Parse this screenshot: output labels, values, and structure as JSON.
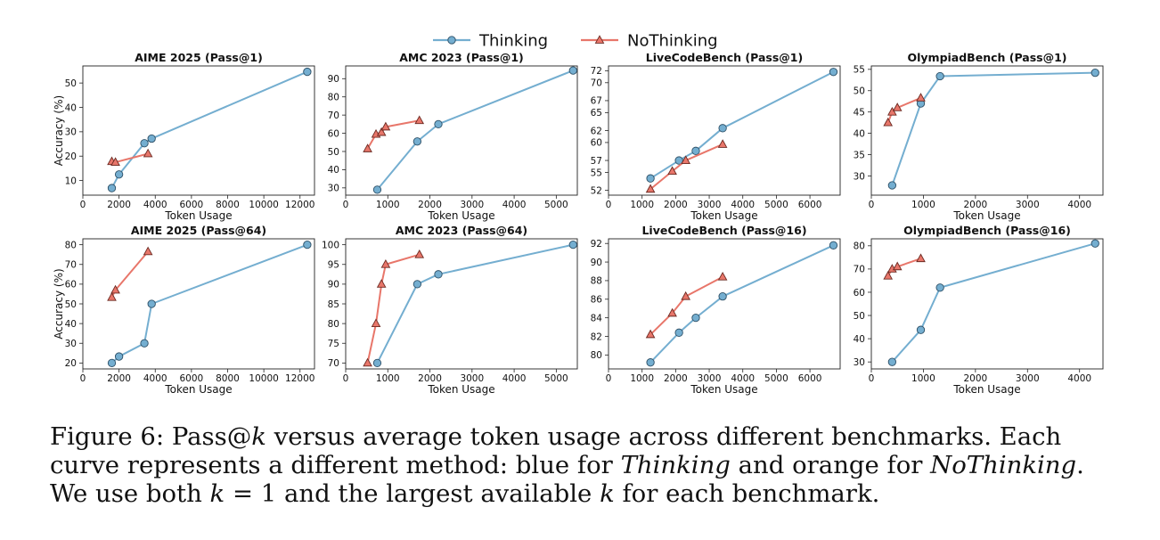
{
  "legend": {
    "placement": "top-center",
    "entries": [
      {
        "label": "Thinking",
        "color": "#74aed0",
        "marker": "circle"
      },
      {
        "label": "NoThinking",
        "color": "#e8766a",
        "marker": "triangle"
      }
    ]
  },
  "chart_data": [
    {
      "type": "line",
      "title": "AIME 2025 (Pass@1)",
      "xlabel": "Token Usage",
      "ylabel": "Accuracy (%)",
      "xlim": [
        0,
        12800
      ],
      "ylim": [
        4,
        57
      ],
      "xticks": [
        0,
        2000,
        4000,
        6000,
        8000,
        10000,
        12000
      ],
      "yticks": [
        10,
        20,
        30,
        40,
        50
      ],
      "series": [
        {
          "name": "Thinking",
          "x": [
            1600,
            2000,
            3400,
            3800,
            12400
          ],
          "y": [
            6.9,
            12.5,
            25.3,
            27.2,
            54.6
          ]
        },
        {
          "name": "NoThinking",
          "x": [
            1600,
            1800,
            3600
          ],
          "y": [
            17.8,
            17.5,
            21.0
          ]
        }
      ]
    },
    {
      "type": "line",
      "title": "AMC 2023 (Pass@1)",
      "xlabel": "Token Usage",
      "ylabel": "",
      "xlim": [
        0,
        5500
      ],
      "ylim": [
        26,
        97
      ],
      "xticks": [
        0,
        1000,
        2000,
        3000,
        4000,
        5000
      ],
      "yticks": [
        30,
        40,
        50,
        60,
        70,
        80,
        90
      ],
      "series": [
        {
          "name": "Thinking",
          "x": [
            750,
            1700,
            2200,
            5400
          ],
          "y": [
            29.0,
            55.5,
            65.0,
            94.5
          ]
        },
        {
          "name": "NoThinking",
          "x": [
            520,
            720,
            850,
            950,
            1750
          ],
          "y": [
            51.5,
            59.5,
            60.5,
            63.5,
            67.0
          ]
        }
      ]
    },
    {
      "type": "line",
      "title": "LiveCodeBench (Pass@1)",
      "xlabel": "Token Usage",
      "ylabel": "",
      "xlim": [
        0,
        6900
      ],
      "ylim": [
        51.2,
        72.8
      ],
      "xticks": [
        0,
        1000,
        2000,
        3000,
        4000,
        5000,
        6000
      ],
      "yticks": [
        52,
        55,
        57,
        60,
        62,
        65,
        67,
        70,
        72
      ],
      "series": [
        {
          "name": "Thinking",
          "x": [
            1250,
            2100,
            2600,
            3400,
            6700
          ],
          "y": [
            54.0,
            57.0,
            58.6,
            62.4,
            71.8
          ]
        },
        {
          "name": "NoThinking",
          "x": [
            1250,
            1900,
            2300,
            3400
          ],
          "y": [
            52.2,
            55.2,
            57.0,
            59.7
          ]
        }
      ]
    },
    {
      "type": "line",
      "title": "OlympiadBench (Pass@1)",
      "xlabel": "Token Usage",
      "ylabel": "",
      "xlim": [
        0,
        4450
      ],
      "ylim": [
        25.5,
        55.8
      ],
      "xticks": [
        0,
        1000,
        2000,
        3000,
        4000
      ],
      "yticks": [
        30,
        35,
        40,
        45,
        50,
        55
      ],
      "series": [
        {
          "name": "Thinking",
          "x": [
            400,
            950,
            1320,
            4300
          ],
          "y": [
            27.8,
            47.0,
            53.4,
            54.2
          ]
        },
        {
          "name": "NoThinking",
          "x": [
            320,
            400,
            500,
            950
          ],
          "y": [
            42.5,
            45.0,
            46.0,
            48.3
          ]
        }
      ]
    },
    {
      "type": "line",
      "title": "AIME 2025 (Pass@64)",
      "xlabel": "Token Usage",
      "ylabel": "Accuracy (%)",
      "xlim": [
        0,
        12800
      ],
      "ylim": [
        17,
        83
      ],
      "xticks": [
        0,
        2000,
        4000,
        6000,
        8000,
        10000,
        12000
      ],
      "yticks": [
        20,
        30,
        40,
        50,
        60,
        70,
        80
      ],
      "series": [
        {
          "name": "Thinking",
          "x": [
            1600,
            2000,
            3400,
            3800,
            12400
          ],
          "y": [
            20.0,
            23.3,
            30.0,
            50.0,
            80.0
          ]
        },
        {
          "name": "NoThinking",
          "x": [
            1600,
            1800,
            3600
          ],
          "y": [
            53.3,
            57.0,
            76.5
          ]
        }
      ]
    },
    {
      "type": "line",
      "title": "AMC 2023 (Pass@64)",
      "xlabel": "Token Usage",
      "ylabel": "",
      "xlim": [
        0,
        5500
      ],
      "ylim": [
        68.5,
        101.5
      ],
      "xticks": [
        0,
        1000,
        2000,
        3000,
        4000,
        5000
      ],
      "yticks": [
        70,
        75,
        80,
        85,
        90,
        95,
        100
      ],
      "series": [
        {
          "name": "Thinking",
          "x": [
            750,
            1700,
            2200,
            5400
          ],
          "y": [
            70.0,
            90.0,
            92.5,
            100.0
          ]
        },
        {
          "name": "NoThinking",
          "x": [
            520,
            720,
            850,
            950,
            1750
          ],
          "y": [
            70.0,
            80.0,
            90.0,
            95.0,
            97.5
          ]
        }
      ]
    },
    {
      "type": "line",
      "title": "LiveCodeBench (Pass@16)",
      "xlabel": "Token Usage",
      "ylabel": "",
      "xlim": [
        0,
        6900
      ],
      "ylim": [
        78.5,
        92.5
      ],
      "xticks": [
        0,
        1000,
        2000,
        3000,
        4000,
        5000,
        6000
      ],
      "yticks": [
        80,
        82,
        84,
        86,
        88,
        90,
        92
      ],
      "series": [
        {
          "name": "Thinking",
          "x": [
            1250,
            2100,
            2600,
            3400,
            6700
          ],
          "y": [
            79.2,
            82.4,
            84.0,
            86.3,
            91.8
          ]
        },
        {
          "name": "NoThinking",
          "x": [
            1250,
            1900,
            2300,
            3400
          ],
          "y": [
            82.2,
            84.5,
            86.3,
            88.4
          ]
        }
      ]
    },
    {
      "type": "line",
      "title": "OlympiadBench (Pass@16)",
      "xlabel": "Token Usage",
      "ylabel": "",
      "xlim": [
        0,
        4450
      ],
      "ylim": [
        27,
        83
      ],
      "xticks": [
        0,
        1000,
        2000,
        3000,
        4000
      ],
      "yticks": [
        30,
        40,
        50,
        60,
        70,
        80
      ],
      "series": [
        {
          "name": "Thinking",
          "x": [
            400,
            950,
            1320,
            4300
          ],
          "y": [
            30.0,
            43.8,
            62.0,
            81.0
          ]
        },
        {
          "name": "NoThinking",
          "x": [
            320,
            400,
            500,
            950
          ],
          "y": [
            67.0,
            70.0,
            71.0,
            74.5
          ]
        }
      ]
    }
  ],
  "caption": {
    "p1": "Figure 6: Pass@",
    "k1": "k",
    "p2": " versus average token usage across different benchmarks. Each curve represents a different method: blue for ",
    "m1": "Thinking",
    "p3": " and orange for ",
    "m2": "NoThinking",
    "p4": ". We use both ",
    "k2": "k",
    "p5": " = 1 and the largest available ",
    "k3": "k",
    "p6": " for each benchmark."
  }
}
